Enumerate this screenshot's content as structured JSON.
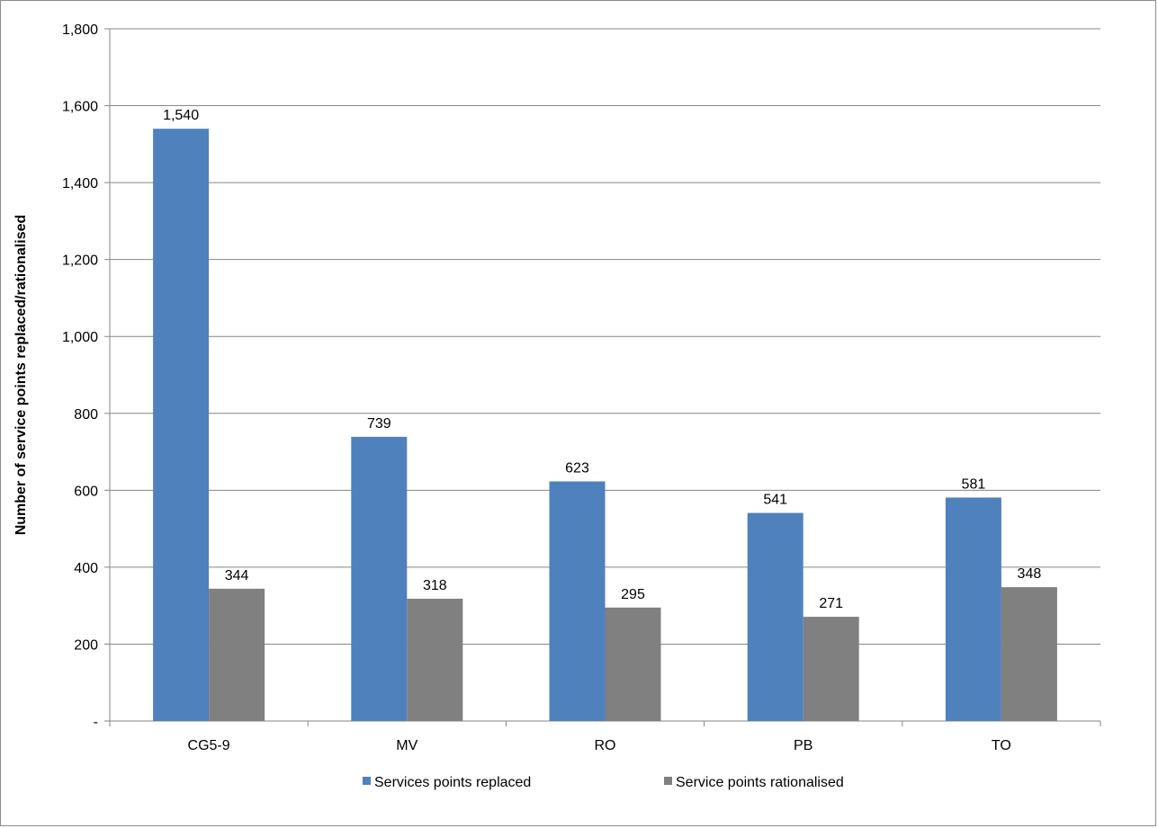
{
  "chart_data": {
    "type": "bar",
    "title": "",
    "xlabel": "",
    "ylabel": "Number of service points replaced/rationalised",
    "categories": [
      "CG5-9",
      "MV",
      "RO",
      "PB",
      "TO"
    ],
    "series": [
      {
        "name": "Services points replaced",
        "color": "#4f81bd",
        "values": [
          1540,
          739,
          623,
          541,
          581
        ],
        "labels": [
          "1,540",
          "739",
          "623",
          "541",
          "581"
        ]
      },
      {
        "name": "Service points rationalised",
        "color": "#808080",
        "values": [
          344,
          318,
          295,
          271,
          348
        ],
        "labels": [
          "344",
          "318",
          "295",
          "271",
          "348"
        ]
      }
    ],
    "ylim": [
      0,
      1800
    ],
    "yticks": [
      0,
      200,
      400,
      600,
      800,
      1000,
      1200,
      1400,
      1600,
      1800
    ],
    "ytick_labels": [
      "-",
      "200",
      "400",
      "600",
      "800",
      "1,000",
      "1,200",
      "1,400",
      "1,600",
      "1,800"
    ],
    "grid": true,
    "legend_position": "bottom"
  }
}
